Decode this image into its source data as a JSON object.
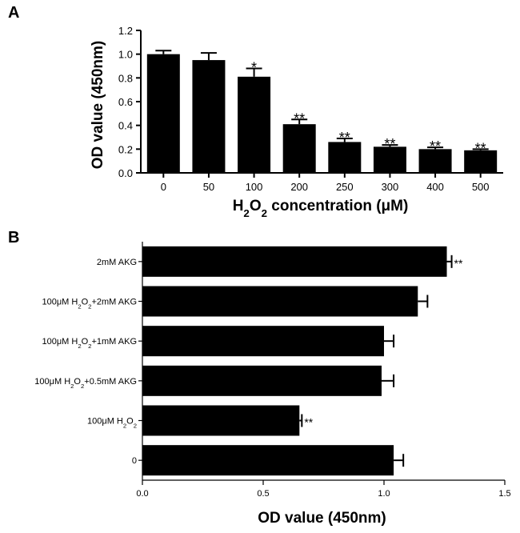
{
  "chart_data": [
    {
      "panel": "A",
      "type": "bar",
      "orientation": "vertical",
      "ylabel": "OD value (450nm)",
      "xlabel_parts": [
        "H",
        "2",
        "O",
        "2",
        " concentration (μM)"
      ],
      "ylim": [
        0,
        1.2
      ],
      "yticks": [
        "0.0",
        "0.2",
        "0.4",
        "0.6",
        "0.8",
        "1.0",
        "1.2"
      ],
      "ytick_values": [
        0,
        0.2,
        0.4,
        0.6,
        0.8,
        1.0,
        1.2
      ],
      "categories": [
        "0",
        "50",
        "100",
        "200",
        "250",
        "300",
        "400",
        "500"
      ],
      "values": [
        1.0,
        0.95,
        0.81,
        0.41,
        0.26,
        0.22,
        0.2,
        0.19
      ],
      "errors": [
        0.03,
        0.06,
        0.07,
        0.04,
        0.03,
        0.015,
        0.015,
        0.01
      ],
      "significance": [
        "",
        "",
        "*",
        "**",
        "**",
        "**",
        "**",
        "**"
      ],
      "bar_color": "#000000"
    },
    {
      "panel": "B",
      "type": "bar",
      "orientation": "horizontal",
      "xlabel": "OD value (450nm)",
      "xlim": [
        0,
        1.5
      ],
      "xticks": [
        "0.0",
        "0.5",
        "1.0",
        "1.5"
      ],
      "xtick_values": [
        0,
        0.5,
        1.0,
        1.5
      ],
      "categories": [
        [
          "2mM AKG"
        ],
        [
          "100μM H",
          "2",
          "O",
          "2",
          "+2mM AKG"
        ],
        [
          "100μM H",
          "2",
          "O",
          "2",
          "+1mM AKG"
        ],
        [
          "100μM H",
          "2",
          "O",
          "2",
          "+0.5mM AKG"
        ],
        [
          "100μM H",
          "2",
          "O",
          "2"
        ],
        [
          "0"
        ]
      ],
      "values": [
        1.26,
        1.14,
        1.0,
        0.99,
        0.65,
        1.04
      ],
      "errors": [
        0.02,
        0.04,
        0.04,
        0.05,
        0.01,
        0.04
      ],
      "significance": [
        "**",
        "",
        "",
        "",
        "**",
        ""
      ],
      "bar_color": "#000000"
    }
  ]
}
